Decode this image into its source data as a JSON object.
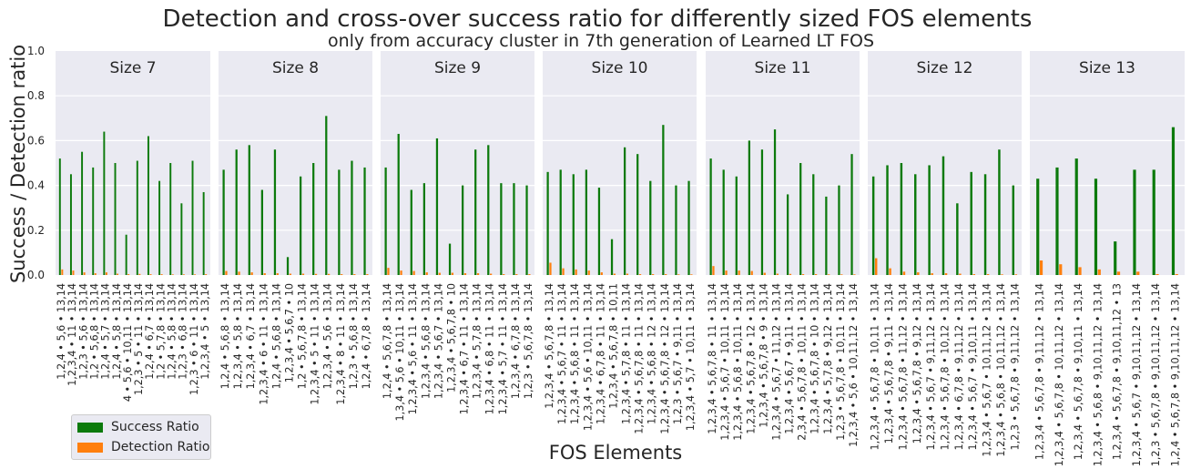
{
  "title": "Detection and cross-over success ratio for differently sized FOS elements",
  "subtitle": "only from accuracy cluster in 7th generation of Learned LT FOS",
  "colors": {
    "success": "#0c7a0c",
    "detection": "#ff7f0e",
    "panel": "#eaeaf2",
    "grid": "#ffffff"
  },
  "legend": {
    "success_label": "Success Ratio",
    "detection_label": "Detection Ratio"
  },
  "chart_data": {
    "type": "bar",
    "xlabel": "FOS Elements",
    "ylabel": "Success / Detection ratio",
    "ylim": [
      0,
      1.0
    ],
    "yticks": [
      "0.0",
      "0.2",
      "0.4",
      "0.6",
      "0.8",
      "1.0"
    ],
    "grid": true,
    "legend_position": "bottom-left",
    "series_names": [
      "Success Ratio",
      "Detection Ratio"
    ],
    "panels": [
      {
        "title": "Size 7",
        "categories": [
          "1,2,4 • 5,6 • 13,14",
          "1,2,3,4 • 11 • 13,14",
          "1,2,3 • 5,6 • 13,14",
          "1,2 • 5,6,8 • 13,14",
          "1,2,4 • 5,7 • 13,14",
          "1,2,4 • 5,8 • 13,14",
          "4 • 5,6 • 10,11 • 13,14",
          "1,2,3 • 5 • 11 • 13,14",
          "1,2,4 • 6,7 • 13,14",
          "1,2 • 5,7,8 • 13,14",
          "1,2,4 • 5,8 • 13,14",
          "1,2,3 • 6,8 • 13,14",
          "1,2,3 • 6 • 11 • 13,14",
          "1,2,3,4 • 5 • 13,14"
        ],
        "success": [
          0.52,
          0.45,
          0.55,
          0.48,
          0.64,
          0.5,
          0.18,
          0.51,
          0.62,
          0.42,
          0.5,
          0.32,
          0.51,
          0.37
        ],
        "detection": [
          0.025,
          0.02,
          0.012,
          0.008,
          0.012,
          0.006,
          0.004,
          0.005,
          0.004,
          0.004,
          0.003,
          0.003,
          0.003,
          0.004
        ]
      },
      {
        "title": "Size 8",
        "categories": [
          "1,2,4 • 5,6,8 • 13,14",
          "1,2,3,4 • 5,8 • 13,14",
          "1,2,3,4 • 6,7 • 13,14",
          "1,2,3,4 • 6 • 11 • 13,14",
          "1,2,4 • 5,6,8 • 13,14",
          "1,2,3,4 • 5,6,7 • 10",
          "1,2 • 5,6,7,8 • 13,14",
          "1,2,3,4 • 5 • 11 • 13,14",
          "1,2,3,4 • 5,6 • 13,14",
          "1,2,3,4 • 8 • 11 • 13,14",
          "1,2,3 • 5,6,8 • 13,14",
          "1,2,4 • 6,7,8 • 13,14"
        ],
        "success": [
          0.47,
          0.56,
          0.58,
          0.38,
          0.56,
          0.08,
          0.44,
          0.5,
          0.71,
          0.47,
          0.51,
          0.48
        ],
        "detection": [
          0.018,
          0.015,
          0.012,
          0.008,
          0.008,
          0.006,
          0.006,
          0.005,
          0.005,
          0.004,
          0.004,
          0.004
        ]
      },
      {
        "title": "Size 9",
        "categories": [
          "1,2,4 • 5,6,7,8 • 13,14",
          "1,3,4 • 5,6 • 10,11 • 13,14",
          "1,2,3,4 • 5,6 • 11 • 13,14",
          "1,2,3,4 • 5,6,8 • 13,14",
          "1,2,3,4 • 5,6,7 • 13,14",
          "1,2,3,4 • 5,6,7,8 • 10",
          "1,2,3,4 • 6,7 • 11 • 13,14",
          "1,2,3,4 • 5,7,8 • 13,14",
          "1,2,3,4 • 6,8 • 11 • 13,14",
          "1,2,3,4 • 5,7 • 11 • 13,14",
          "1,2,3,4 • 6,7,8 • 13,14",
          "1,2,3 • 5,6,7,8 • 13,14"
        ],
        "success": [
          0.48,
          0.63,
          0.38,
          0.41,
          0.61,
          0.14,
          0.4,
          0.56,
          0.58,
          0.41,
          0.41,
          0.4
        ],
        "detection": [
          0.032,
          0.02,
          0.018,
          0.012,
          0.01,
          0.01,
          0.008,
          0.008,
          0.006,
          0.004,
          0.004,
          0.004
        ]
      },
      {
        "title": "Size 10",
        "categories": [
          "1,2,3,4 • 5,6,7,8 • 13,14",
          "1,2,3,4 • 5,6,7 • 11 • 13,14",
          "1,2,3,4 • 5,6,8 • 11 • 13,14",
          "1,2,3,4 • 5,6 • 10,11 • 13,14",
          "1,2,3,4 • 6,7,8 • 11 • 13,14",
          "1,2,3,4 • 5,6,7,8 • 10,11",
          "1,2,3,4 • 5,7,8 • 11 • 13,14",
          "1,2,3,4 • 5,6,7,8 • 11 • 13,14",
          "1,2,3,4 • 5,6,8 • 12 • 13,14",
          "1,2,3,4 • 5,6,7,8 • 12 • 13,14",
          "1,2,3 • 5,6,7 • 9,11 • 13,14",
          "1,2,3,4 • 5,7 • 10,11 • 13,14"
        ],
        "success": [
          0.46,
          0.47,
          0.45,
          0.47,
          0.39,
          0.16,
          0.57,
          0.54,
          0.42,
          0.67,
          0.4,
          0.42
        ],
        "detection": [
          0.055,
          0.03,
          0.025,
          0.02,
          0.012,
          0.006,
          0.006,
          0.004,
          0.004,
          0.004,
          0.003,
          0.003
        ]
      },
      {
        "title": "Size 11",
        "categories": [
          "1,2,3,4 • 5,6,7,8 • 11 • 13,14",
          "1,2,3,4 • 5,6,7 • 10,11 • 13,14",
          "1,2,3,4 • 5,6,8 • 10,11 • 13,14",
          "1,2,3,4 • 5,6,7,8 • 12 • 13,14",
          "1,2,3,4 • 5,6,7,8 • 9 • 13,14",
          "1,2,3,4 • 5,6,7 • 11,12 • 13,14",
          "1,2,3,4 • 5,6,7 • 9,11 • 13,14",
          "2,3,4 • 5,6,7,8 • 10,11 • 13,14",
          "1,2,3,4 • 5,6,7,8 • 10 • 13,14",
          "1,2,3,4 • 5,7,8 • 9,12 • 13,14",
          "1,2,3 • 5,6,7,8 • 10,11 • 13,14",
          "1,2,3,4 • 5,6 • 10,11,12 • 13,14"
        ],
        "success": [
          0.52,
          0.47,
          0.44,
          0.6,
          0.56,
          0.65,
          0.36,
          0.5,
          0.45,
          0.35,
          0.4,
          0.54
        ],
        "detection": [
          0.04,
          0.02,
          0.02,
          0.018,
          0.01,
          0.006,
          0.005,
          0.004,
          0.004,
          0.003,
          0.003,
          0.003
        ]
      },
      {
        "title": "Size 12",
        "categories": [
          "1,2,3,4 • 5,6,7,8 • 10,11 • 13,14",
          "1,2,3,4 • 5,6,7,8 • 9,11 • 13,14",
          "1,2,3,4 • 5,6,7,8 • 11,12 • 13,14",
          "1,2,3,4 • 5,6,7,8 • 9,12 • 13,14",
          "1,2,3,4 • 5,6,7 • 9,11,12 • 13,14",
          "1,2,3,4 • 5,6,7,8 • 10,12 • 13,14",
          "1,2,3,4 • 6,7,8 • 9,11,12 • 13,14",
          "1,2,3,4 • 5,6,7 • 9,10,11 • 13,14",
          "1,2,3,4 • 5,6,7 • 10,11,12 • 13,14",
          "1,2,3,4 • 5,6,8 • 10,11,12 • 13,14",
          "1,2,3 • 5,6,7,8 • 9,11,12 • 13,14"
        ],
        "success": [
          0.44,
          0.49,
          0.5,
          0.45,
          0.49,
          0.53,
          0.32,
          0.46,
          0.45,
          0.56,
          0.4
        ],
        "detection": [
          0.075,
          0.03,
          0.015,
          0.012,
          0.008,
          0.008,
          0.006,
          0.004,
          0.004,
          0.003,
          0.003
        ]
      },
      {
        "title": "Size 13",
        "categories": [
          "1,2,3,4 • 5,6,7,8 • 9,11,12 • 13,14",
          "1,2,3,4 • 5,6,7,8 • 10,11,12 • 13,14",
          "1,2,3,4 • 5,6,7,8 • 9,10,11 • 13,14",
          "1,2,3,4 • 5,6,8 • 9,10,11,12 • 13,14",
          "1,2,3,4 • 5,6,7,8 • 9,10,11,12 • 13",
          "1,2,3,4 • 5,6,7 • 9,10,11,12 • 13,14",
          "1,2,3 • 5,6,7,8 • 9,10,11,12 • 13,14",
          "1,2,4 • 5,6,7,8 • 9,10,11,12 • 13,14"
        ],
        "success": [
          0.43,
          0.48,
          0.52,
          0.43,
          0.15,
          0.47,
          0.47,
          0.66
        ],
        "detection": [
          0.065,
          0.048,
          0.035,
          0.025,
          0.015,
          0.015,
          0.004,
          0.004
        ]
      }
    ]
  }
}
